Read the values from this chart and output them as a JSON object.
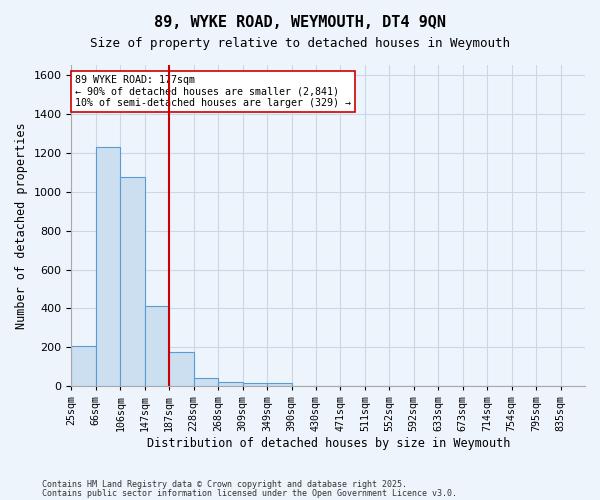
{
  "title": "89, WYKE ROAD, WEYMOUTH, DT4 9QN",
  "subtitle": "Size of property relative to detached houses in Weymouth",
  "xlabel": "Distribution of detached houses by size in Weymouth",
  "ylabel": "Number of detached properties",
  "footnote1": "Contains HM Land Registry data © Crown copyright and database right 2025.",
  "footnote2": "Contains public sector information licensed under the Open Government Licence v3.0.",
  "bins": [
    "25sqm",
    "66sqm",
    "106sqm",
    "147sqm",
    "187sqm",
    "228sqm",
    "268sqm",
    "309sqm",
    "349sqm",
    "390sqm",
    "430sqm",
    "471sqm",
    "511sqm",
    "552sqm",
    "592sqm",
    "633sqm",
    "673sqm",
    "714sqm",
    "754sqm",
    "795sqm",
    "835sqm"
  ],
  "values": [
    205,
    1230,
    1075,
    415,
    175,
    45,
    25,
    15,
    15,
    0,
    0,
    0,
    0,
    0,
    0,
    0,
    0,
    0,
    0,
    0
  ],
  "bar_color": "#ccdff0",
  "bar_edge_color": "#5b9bd5",
  "red_line_x": 4,
  "red_line_color": "#cc0000",
  "annotation_text": "89 WYKE ROAD: 177sqm\n← 90% of detached houses are smaller (2,841)\n10% of semi-detached houses are larger (329) →",
  "annotation_box_color": "#ffffff",
  "annotation_box_edge": "#cc0000",
  "ylim": [
    0,
    1650
  ],
  "yticks": [
    0,
    200,
    400,
    600,
    800,
    1000,
    1200,
    1400,
    1600
  ],
  "grid_color": "#c8d8e8",
  "background_color": "#eef4fb"
}
